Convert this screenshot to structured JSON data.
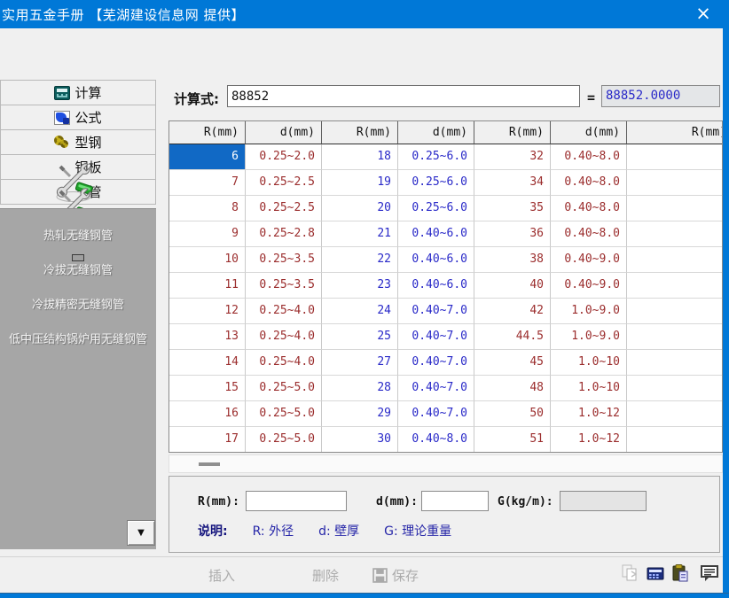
{
  "window": {
    "title": "实用五金手册 【芜湖建设信息网 提供】",
    "close_glyph": "×"
  },
  "sidebar": {
    "nav_buttons": [
      {
        "label": "计算",
        "icon": "calculator-icon"
      },
      {
        "label": "公式",
        "icon": "formula-icon"
      },
      {
        "label": "型钢",
        "icon": "gears-icon"
      },
      {
        "label": "钢板",
        "icon": "wrench-icon"
      },
      {
        "label": "钢管",
        "icon": "wrench-icon"
      }
    ],
    "pipe_items": [
      {
        "label": "热轧无缝钢管",
        "selected": false
      },
      {
        "label": "冷拔无缝钢管",
        "selected": true
      },
      {
        "label": "冷拔精密无缝钢管",
        "selected": false
      },
      {
        "label": "低中压结构锅炉用无缝钢管",
        "selected": false
      }
    ],
    "dropdown_glyph": "▼"
  },
  "calc": {
    "label": "计算式:",
    "expression": "88852",
    "equals": "=",
    "result": "88852.0000"
  },
  "table": {
    "headers": [
      "R(mm)",
      "d(mm)",
      "R(mm)",
      "d(mm)",
      "R(mm)",
      "d(mm)",
      "R(mm)"
    ],
    "column_colors": [
      "maroon",
      "maroon",
      "blue",
      "blue",
      "maroon",
      "maroon",
      "maroon"
    ],
    "selected": {
      "row": 0,
      "col": 0
    },
    "rows": [
      [
        "6",
        "0.25~2.0",
        "18",
        "0.25~6.0",
        "32",
        "0.40~8.0",
        ""
      ],
      [
        "7",
        "0.25~2.5",
        "19",
        "0.25~6.0",
        "34",
        "0.40~8.0",
        ""
      ],
      [
        "8",
        "0.25~2.5",
        "20",
        "0.25~6.0",
        "35",
        "0.40~8.0",
        ""
      ],
      [
        "9",
        "0.25~2.8",
        "21",
        "0.40~6.0",
        "36",
        "0.40~8.0",
        ""
      ],
      [
        "10",
        "0.25~3.5",
        "22",
        "0.40~6.0",
        "38",
        "0.40~9.0",
        ""
      ],
      [
        "11",
        "0.25~3.5",
        "23",
        "0.40~6.0",
        "40",
        "0.40~9.0",
        ""
      ],
      [
        "12",
        "0.25~4.0",
        "24",
        "0.40~7.0",
        "42",
        "1.0~9.0",
        ""
      ],
      [
        "13",
        "0.25~4.0",
        "25",
        "0.40~7.0",
        "44.5",
        "1.0~9.0",
        ""
      ],
      [
        "14",
        "0.25~4.0",
        "27",
        "0.40~7.0",
        "45",
        "1.0~10",
        ""
      ],
      [
        "15",
        "0.25~5.0",
        "28",
        "0.40~7.0",
        "48",
        "1.0~10",
        ""
      ],
      [
        "16",
        "0.25~5.0",
        "29",
        "0.40~7.0",
        "50",
        "1.0~12",
        ""
      ],
      [
        "17",
        "0.25~5.0",
        "30",
        "0.40~8.0",
        "51",
        "1.0~12",
        ""
      ]
    ]
  },
  "detail": {
    "r_label": "R(mm):",
    "r_value": "",
    "d_label": "d(mm):",
    "d_value": "",
    "g_label": "G(kg/m):",
    "g_value": "",
    "note_label": "说明:",
    "notes": [
      "R: 外径",
      "d: 壁厚",
      "G: 理论重量"
    ]
  },
  "toolbar": {
    "insert_label": "插入",
    "delete_label": "删除",
    "save_label": "保存"
  },
  "colors": {
    "titlebar": "#0078d7",
    "selection": "#1169c5",
    "maroon_text": "#9b2d2d",
    "blue_text": "#2929c8",
    "sidebar_panel": "#a6a6a6"
  }
}
